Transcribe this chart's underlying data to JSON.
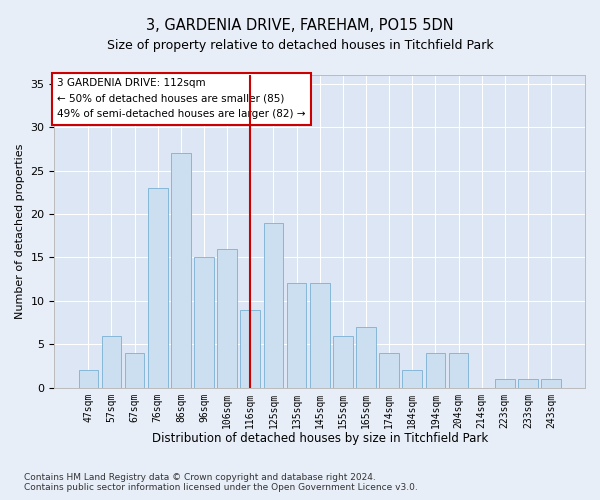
{
  "title": "3, GARDENIA DRIVE, FAREHAM, PO15 5DN",
  "subtitle": "Size of property relative to detached houses in Titchfield Park",
  "xlabel": "Distribution of detached houses by size in Titchfield Park",
  "ylabel": "Number of detached properties",
  "categories": [
    "47sqm",
    "57sqm",
    "67sqm",
    "76sqm",
    "86sqm",
    "96sqm",
    "106sqm",
    "116sqm",
    "125sqm",
    "135sqm",
    "145sqm",
    "155sqm",
    "165sqm",
    "174sqm",
    "184sqm",
    "194sqm",
    "204sqm",
    "214sqm",
    "223sqm",
    "233sqm",
    "243sqm"
  ],
  "values": [
    2,
    6,
    4,
    23,
    27,
    15,
    16,
    9,
    19,
    12,
    12,
    6,
    7,
    4,
    2,
    4,
    4,
    0,
    1,
    1,
    1
  ],
  "bar_color": "#ccdff0",
  "bar_edgecolor": "#7ab0d4",
  "vline_x_index": 7,
  "vline_color": "#cc0000",
  "annotation_title": "3 GARDENIA DRIVE: 112sqm",
  "annotation_line1": "← 50% of detached houses are smaller (85)",
  "annotation_line2": "49% of semi-detached houses are larger (82) →",
  "annotation_box_edgecolor": "#cc0000",
  "ylim": [
    0,
    36
  ],
  "yticks": [
    0,
    5,
    10,
    15,
    20,
    25,
    30,
    35
  ],
  "footer1": "Contains HM Land Registry data © Crown copyright and database right 2024.",
  "footer2": "Contains public sector information licensed under the Open Government Licence v3.0.",
  "bg_color": "#e8eef8",
  "plot_bg_color": "#dce6f4",
  "grid_color": "#ffffff",
  "title_fontsize": 10.5,
  "subtitle_fontsize": 9,
  "footer_fontsize": 6.5,
  "tick_fontsize": 7,
  "ylabel_fontsize": 8,
  "xlabel_fontsize": 8.5
}
